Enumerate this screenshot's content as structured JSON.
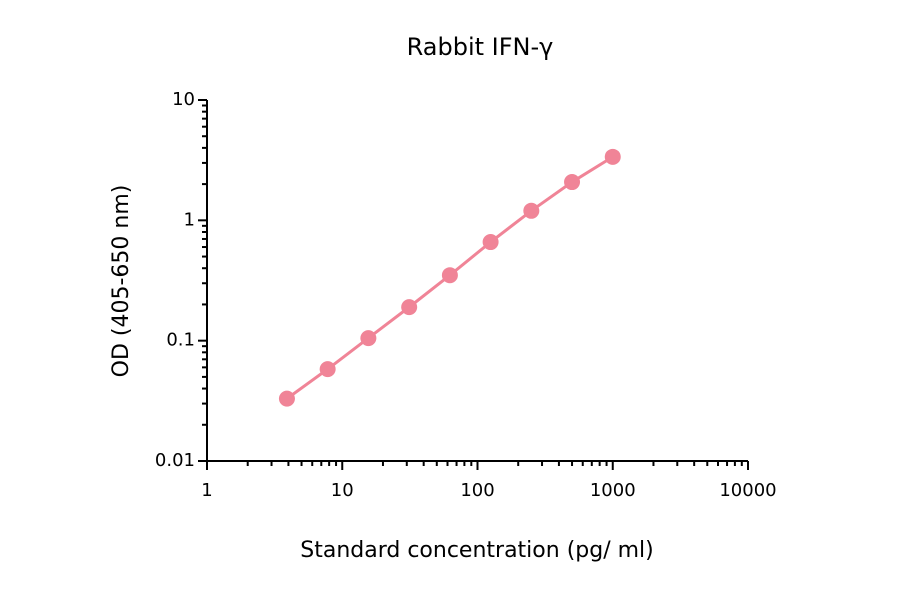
{
  "chart_data": {
    "type": "line",
    "title": "Rabbit IFN-γ",
    "x_label": "Standard concentration (pg/ ml)",
    "y_label": "OD (405-650 nm)",
    "x": [
      3.9,
      7.8,
      15.6,
      31.25,
      62.5,
      125,
      250,
      500,
      1000
    ],
    "series": [
      {
        "name": "Rabbit IFN-γ",
        "color": "#f08497",
        "values": [
          0.033,
          0.058,
          0.105,
          0.19,
          0.35,
          0.66,
          1.2,
          2.08,
          3.37
        ]
      }
    ],
    "xlim": [
      1,
      10000
    ],
    "xticks": [
      1,
      10,
      100,
      1000,
      10000
    ],
    "ylim": [
      0.01,
      10
    ],
    "yticks": [
      0.01,
      0.1,
      1,
      10
    ],
    "x_log": true,
    "y_log": true,
    "grid": false,
    "markers": true
  }
}
